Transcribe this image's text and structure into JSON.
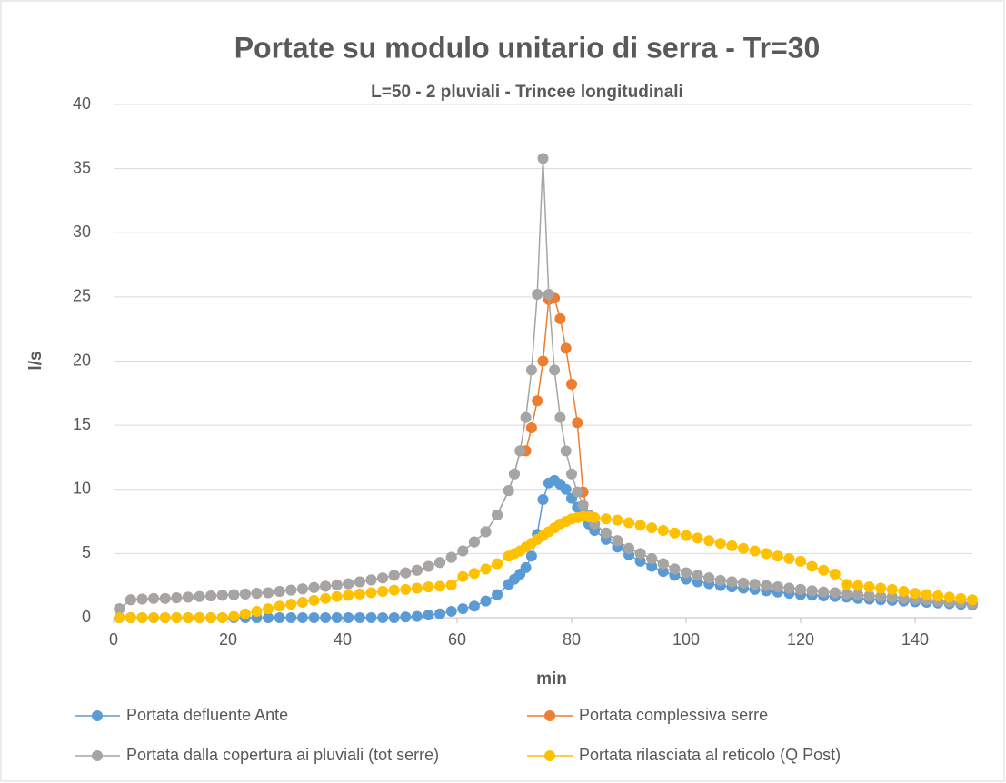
{
  "chart_data": {
    "type": "line",
    "title": "Portate su modulo unitario di serra - Tr=30",
    "subtitle": "L=50 - 2 pluviali - Trincee longitudinali",
    "x_label": "min",
    "y_label": "l/s",
    "xlim": [
      0,
      150
    ],
    "xticks": [
      0,
      20,
      40,
      60,
      80,
      100,
      120,
      140
    ],
    "ylim": [
      0,
      40
    ],
    "yticks": [
      0,
      5,
      10,
      15,
      20,
      25,
      30,
      35,
      40
    ],
    "grid": true,
    "legend": "bottom",
    "x": [
      1,
      3,
      5,
      7,
      9,
      11,
      13,
      15,
      17,
      19,
      21,
      23,
      25,
      27,
      29,
      31,
      33,
      35,
      37,
      39,
      41,
      43,
      45,
      47,
      49,
      51,
      53,
      55,
      57,
      59,
      61,
      63,
      65,
      67,
      69,
      70,
      71,
      72,
      73,
      74,
      75,
      76,
      77,
      78,
      79,
      80,
      81,
      82,
      83,
      84,
      86,
      88,
      90,
      92,
      94,
      96,
      98,
      100,
      102,
      104,
      106,
      108,
      110,
      112,
      114,
      116,
      118,
      120,
      122,
      124,
      126,
      128,
      130,
      132,
      134,
      136,
      138,
      140,
      142,
      144,
      146,
      148,
      150
    ],
    "series": [
      {
        "name": "Portata defluente Ante",
        "color": "#5b9bd5",
        "values": [
          0,
          0,
          0,
          0,
          0,
          0,
          0,
          0,
          0,
          0,
          0,
          0,
          0,
          0,
          0,
          0,
          0,
          0,
          0,
          0,
          0,
          0,
          0,
          0,
          0,
          0.05,
          0.1,
          0.2,
          0.3,
          0.5,
          0.7,
          0.9,
          1.3,
          1.8,
          2.6,
          3,
          3.4,
          3.9,
          4.8,
          6.5,
          9.2,
          10.5,
          10.7,
          10.4,
          10,
          9.3,
          8.6,
          8,
          7.3,
          6.8,
          6.1,
          5.5,
          4.9,
          4.4,
          4,
          3.6,
          3.3,
          3,
          2.8,
          2.65,
          2.5,
          2.4,
          2.3,
          2.2,
          2.1,
          2,
          1.9,
          1.8,
          1.75,
          1.7,
          1.65,
          1.6,
          1.5,
          1.45,
          1.4,
          1.35,
          1.3,
          1.25,
          1.2,
          1.15,
          1.1,
          1.05,
          1
        ]
      },
      {
        "name": "Portata complessiva serre",
        "color": "#ed7d31",
        "values": [
          0.7,
          1.4,
          1.45,
          1.5,
          1.5,
          1.55,
          1.6,
          1.65,
          1.7,
          1.75,
          1.8,
          1.85,
          1.9,
          1.95,
          2.05,
          2.15,
          2.25,
          2.35,
          2.45,
          2.55,
          2.65,
          2.8,
          2.95,
          3.1,
          3.3,
          3.5,
          3.7,
          4,
          4.3,
          4.7,
          5.2,
          5.9,
          6.7,
          8,
          9.9,
          11.2,
          13,
          13,
          14.8,
          16.9,
          20,
          24.8,
          24.9,
          23.3,
          21,
          18.2,
          15.2,
          9.8,
          8,
          7.3,
          6.6,
          6,
          5.4,
          5,
          4.6,
          4.2,
          3.8,
          3.5,
          3.3,
          3.1,
          2.9,
          2.8,
          2.7,
          2.6,
          2.5,
          2.4,
          2.3,
          2.2,
          2.1,
          2,
          1.95,
          1.85,
          1.8,
          1.7,
          1.65,
          1.6,
          1.5,
          1.45,
          1.4,
          1.3,
          1.25,
          1.2,
          1.1
        ]
      },
      {
        "name": "Portata dalla copertura ai pluviali (tot serre)",
        "color": "#a5a5a5",
        "values": [
          0.7,
          1.4,
          1.45,
          1.5,
          1.5,
          1.55,
          1.6,
          1.65,
          1.7,
          1.75,
          1.8,
          1.85,
          1.9,
          1.95,
          2.05,
          2.15,
          2.25,
          2.35,
          2.45,
          2.55,
          2.65,
          2.8,
          2.95,
          3.1,
          3.3,
          3.5,
          3.7,
          4,
          4.3,
          4.7,
          5.2,
          5.9,
          6.7,
          8,
          9.9,
          11.2,
          13,
          15.6,
          19.3,
          25.2,
          35.8,
          25.2,
          19.3,
          15.6,
          13,
          11.2,
          9.8,
          8.8,
          8,
          7.3,
          6.6,
          6,
          5.4,
          5,
          4.6,
          4.2,
          3.8,
          3.5,
          3.3,
          3.1,
          2.9,
          2.8,
          2.7,
          2.6,
          2.5,
          2.4,
          2.3,
          2.2,
          2.1,
          2,
          1.95,
          1.85,
          1.8,
          1.7,
          1.65,
          1.6,
          1.5,
          1.45,
          1.4,
          1.3,
          1.25,
          1.2,
          1.1
        ]
      },
      {
        "name": "Portata rilasciata al reticolo (Q Post)",
        "color": "#ffc000",
        "values": [
          0,
          0,
          0,
          0,
          0,
          0,
          0,
          0,
          0,
          0,
          0.1,
          0.3,
          0.5,
          0.7,
          0.9,
          1.05,
          1.2,
          1.35,
          1.5,
          1.65,
          1.75,
          1.85,
          1.95,
          2.05,
          2.15,
          2.2,
          2.3,
          2.4,
          2.45,
          2.55,
          3.2,
          3.45,
          3.8,
          4.2,
          4.8,
          5,
          5.2,
          5.5,
          5.8,
          6.1,
          6.4,
          6.7,
          7,
          7.3,
          7.5,
          7.7,
          7.8,
          7.9,
          7.85,
          7.8,
          7.7,
          7.6,
          7.4,
          7.2,
          7,
          6.8,
          6.6,
          6.4,
          6.2,
          6,
          5.8,
          5.6,
          5.4,
          5.2,
          5,
          4.8,
          4.6,
          4.4,
          4,
          3.7,
          3.4,
          2.6,
          2.5,
          2.4,
          2.3,
          2.2,
          2.05,
          1.9,
          1.8,
          1.7,
          1.6,
          1.5,
          1.4
        ]
      }
    ]
  }
}
